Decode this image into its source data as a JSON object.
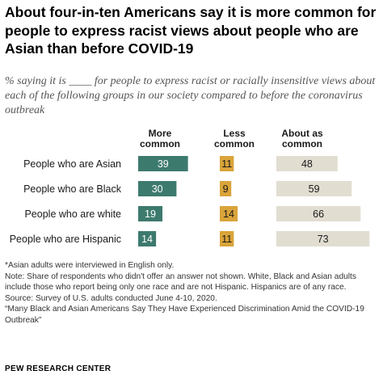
{
  "chart_data": {
    "type": "bar",
    "title": "About four-in-ten Americans say it is more common for people to express racist views about people who are Asian than before COVID-19",
    "subtitle": "% saying it is ____ for people to express racist or racially insensitive views about each of the following groups in our society compared to before the coronavirus outbreak",
    "categories": [
      "People who are Asian",
      "People who are Black",
      "People who are white",
      "People who are Hispanic"
    ],
    "series": [
      {
        "name": "More common",
        "header": [
          "More",
          "common"
        ],
        "color": "#3d7a6e",
        "label_color": "#ffffff",
        "values": [
          39,
          30,
          19,
          14
        ]
      },
      {
        "name": "Less common",
        "header": [
          "Less",
          "common"
        ],
        "color": "#d9a43a",
        "label_color": "#1a1a1a",
        "values": [
          11,
          9,
          14,
          11
        ]
      },
      {
        "name": "About as common",
        "header": [
          "About as",
          "common"
        ],
        "color": "#e1ddd1",
        "label_color": "#1a1a1a",
        "values": [
          48,
          59,
          66,
          73
        ]
      }
    ],
    "notes": [
      "*Asian adults were interviewed in English only.",
      "Note: Share of respondents who didn't offer an answer not shown. White, Black and Asian adults include those who report being only one race and are not Hispanic. Hispanics are of any race.",
      "Source: Survey of U.S. adults conducted June 4-10, 2020.",
      "“Many Black and Asian Americans Say They Have Experienced Discrimination Amid the COVID-19 Outbreak”"
    ],
    "source_brand": "PEW RESEARCH CENTER"
  }
}
